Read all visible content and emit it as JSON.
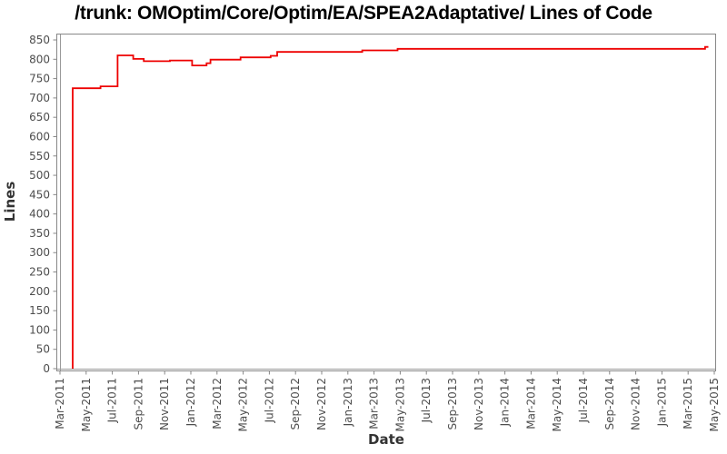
{
  "page": {
    "background": "#ffffff"
  },
  "colors": {
    "plot_border": "#878787",
    "axis_line": "#9a9a9a",
    "tick_mark": "#878787",
    "tick_label": "#4d4d4d",
    "axis_label": "#333333",
    "title": "#000000",
    "line": "#ee0000"
  },
  "chart_data": {
    "type": "line",
    "subtype": "step-after",
    "title": "/trunk: OMOptim/Core/Optim/EA/SPEA2Adaptative/ Lines of Code",
    "xlabel": "Date",
    "ylabel": "Lines",
    "grid": false,
    "legend_position": "none",
    "x_axis_months_range": [
      0,
      50
    ],
    "x_tick_labels": [
      "Mar-2011",
      "May-2011",
      "Jul-2011",
      "Sep-2011",
      "Nov-2011",
      "Jan-2012",
      "Mar-2012",
      "May-2012",
      "Jul-2012",
      "Sep-2012",
      "Nov-2012",
      "Jan-2013",
      "Mar-2013",
      "May-2013",
      "Jul-2013",
      "Sep-2013",
      "Nov-2013",
      "Jan-2014",
      "Mar-2014",
      "May-2014",
      "Jul-2014",
      "Sep-2014",
      "Nov-2014",
      "Jan-2015",
      "Mar-2015",
      "May-2015"
    ],
    "y_ticks": [
      0,
      50,
      100,
      150,
      200,
      250,
      300,
      350,
      400,
      450,
      500,
      550,
      600,
      650,
      700,
      750,
      800,
      850
    ],
    "ylim": [
      0,
      864
    ],
    "series": [
      {
        "name": "Lines of Code",
        "color": "#ee0000",
        "points": [
          {
            "m": 0.97,
            "v": 0,
            "date": "Apr-2011"
          },
          {
            "m": 0.97,
            "v": 725,
            "date": "Apr-2011"
          },
          {
            "m": 3.1,
            "v": 730,
            "date": "Jun-2011"
          },
          {
            "m": 4.4,
            "v": 810,
            "date": "Jul-2011"
          },
          {
            "m": 5.6,
            "v": 801,
            "date": "Aug-2011"
          },
          {
            "m": 6.4,
            "v": 795,
            "date": "Sep-2011"
          },
          {
            "m": 8.4,
            "v": 797,
            "date": "Nov-2011"
          },
          {
            "m": 10.1,
            "v": 784,
            "date": "Jan-2012"
          },
          {
            "m": 11.2,
            "v": 790,
            "date": "Feb-2012"
          },
          {
            "m": 11.5,
            "v": 799,
            "date": "Feb-2012"
          },
          {
            "m": 13.8,
            "v": 805,
            "date": "Apr-2012"
          },
          {
            "m": 16.1,
            "v": 809,
            "date": "Jul-2012"
          },
          {
            "m": 16.6,
            "v": 819,
            "date": "Jul-2012"
          },
          {
            "m": 23.1,
            "v": 823,
            "date": "Feb-2013"
          },
          {
            "m": 25.8,
            "v": 827,
            "date": "Apr-2013"
          },
          {
            "m": 49.3,
            "v": 832,
            "date": "Apr-2015"
          },
          {
            "m": 49.55,
            "v": 832,
            "date": "May-2015"
          }
        ]
      }
    ]
  }
}
